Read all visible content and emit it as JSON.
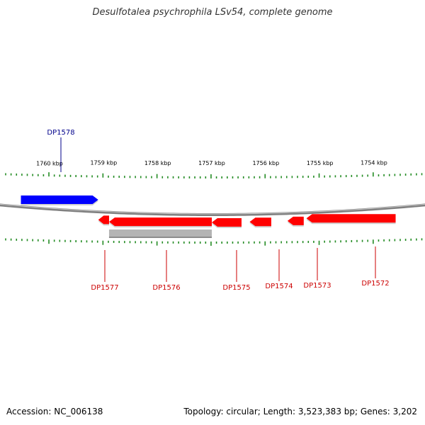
{
  "title": "Desulfotalea psychrophila LSv54, complete genome",
  "footer": {
    "accession": "Accession: NC_006138",
    "info": "Topology: circular; Length: 3,523,383 bp; Genes: 3,202"
  },
  "colors": {
    "forward_gene": "#0000ff",
    "reverse_gene": "#ff0000",
    "grey_feature": "#b4b4b4",
    "backbone": "#808080",
    "tick": "#228b22",
    "label_forward": "#00008b",
    "label_reverse": "#cc0000"
  },
  "ruler": {
    "ticks": [
      {
        "label": "1760 kbp",
        "kbp": 1760
      },
      {
        "label": "1759 kbp",
        "kbp": 1759
      },
      {
        "label": "1758 kbp",
        "kbp": 1758
      },
      {
        "label": "1757 kbp",
        "kbp": 1757
      },
      {
        "label": "1756 kbp",
        "kbp": 1756
      },
      {
        "label": "1755 kbp",
        "kbp": 1755
      },
      {
        "label": "1754 kbp",
        "kbp": 1754
      }
    ]
  },
  "genes": [
    {
      "id": "DP1578",
      "strand": "+",
      "start_kbp": 1760.53,
      "end_kbp": 1759.1
    },
    {
      "id": "DP1577",
      "strand": "-",
      "start_kbp": 1759.1,
      "end_kbp": 1758.9
    },
    {
      "id": "DP1576",
      "strand": "-",
      "start_kbp": 1758.9,
      "end_kbp": 1757.0
    },
    {
      "id": "DP1575",
      "strand": "-",
      "start_kbp": 1757.0,
      "end_kbp": 1756.45
    },
    {
      "id": "DP1574",
      "strand": "-",
      "start_kbp": 1756.3,
      "end_kbp": 1755.9
    },
    {
      "id": "DP1573",
      "strand": "-",
      "start_kbp": 1755.6,
      "end_kbp": 1755.3
    },
    {
      "id": "DP1572",
      "strand": "-",
      "start_kbp": 1755.25,
      "end_kbp": 1753.6
    }
  ],
  "grey_feature": {
    "start_kbp": 1758.9,
    "end_kbp": 1757.0
  }
}
